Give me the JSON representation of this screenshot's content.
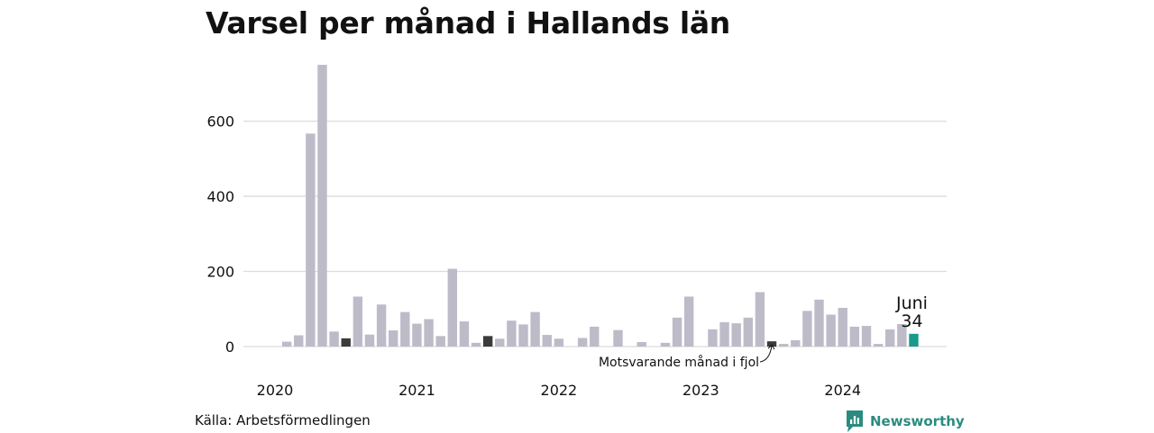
{
  "chart_data": {
    "type": "bar",
    "title": "Varsel per månad i Hallands län",
    "ylim": [
      0,
      750
    ],
    "y_ticks": [
      0,
      200,
      400,
      600
    ],
    "x_tick_labels": [
      {
        "label": "2020",
        "index": 0
      },
      {
        "label": "2021",
        "index": 12
      },
      {
        "label": "2022",
        "index": 24
      },
      {
        "label": "2023",
        "index": 36
      },
      {
        "label": "2024",
        "index": 48
      }
    ],
    "grid": true,
    "values": [
      0,
      13,
      30,
      567,
      750,
      40,
      22,
      133,
      32,
      112,
      43,
      92,
      61,
      73,
      28,
      207,
      67,
      10,
      28,
      21,
      69,
      59,
      92,
      31,
      21,
      0,
      23,
      53,
      0,
      44,
      0,
      12,
      0,
      10,
      77,
      133,
      0,
      46,
      65,
      62,
      77,
      145,
      14,
      7,
      17,
      95,
      125,
      85,
      103,
      53,
      55,
      7,
      46,
      60,
      34
    ],
    "highlight_same_month_indices": [
      6,
      18,
      42
    ],
    "current_index": 54,
    "colors": {
      "default": "#bebbc9",
      "same_month": "#3b3b3b",
      "current": "#1a9a8a",
      "grid": "#dcdcdc"
    },
    "current_label": {
      "month": "Juni",
      "value": "34"
    },
    "annotation": "Motsvarande månad i fjol"
  },
  "footer": {
    "source": "Källa: Arbetsförmedlingen",
    "brand": "Newsworthy"
  }
}
